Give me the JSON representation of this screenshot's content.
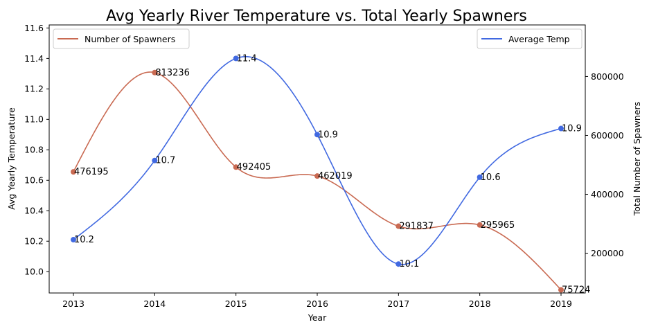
{
  "chart_data": {
    "type": "line",
    "title": "Avg Yearly River Temperature vs. Total Yearly Spawners",
    "xlabel": "Year",
    "ylabel_left": "Avg Yearly Temperature",
    "ylabel_right": "Total Number of Spawners",
    "x": [
      2013,
      2014,
      2015,
      2016,
      2017,
      2018,
      2019
    ],
    "x_ticks": [
      "2013",
      "2014",
      "2015",
      "2016",
      "2017",
      "2018",
      "2019"
    ],
    "ylim_left": [
      9.86,
      11.62
    ],
    "yticks_left": [
      "10.0",
      "10.2",
      "10.4",
      "10.6",
      "10.8",
      "11.0",
      "11.2",
      "11.4",
      "11.6"
    ],
    "ylim_right": [
      65000,
      975000
    ],
    "yticks_right": [
      "200000",
      "400000",
      "600000",
      "800000"
    ],
    "grid": false,
    "series": [
      {
        "name": "Number of Spawners",
        "axis": "right",
        "color": "#c96a52",
        "smoothed": true,
        "values": [
          476195,
          813236,
          492405,
          462019,
          291837,
          295965,
          75724
        ],
        "labels": [
          "476195",
          "813236",
          "492405",
          "462019",
          "291837",
          "295965",
          "75724"
        ],
        "legend_position": "top-left"
      },
      {
        "name": "Average Temp",
        "axis": "left",
        "color": "#4169e1",
        "smoothed": true,
        "values": [
          10.21,
          10.73,
          11.4,
          10.9,
          10.05,
          10.62,
          10.94
        ],
        "labels": [
          "10.2",
          "10.7",
          "11.4",
          "10.9",
          "10.1",
          "10.6",
          "10.9"
        ],
        "legend_position": "top-right"
      }
    ]
  }
}
